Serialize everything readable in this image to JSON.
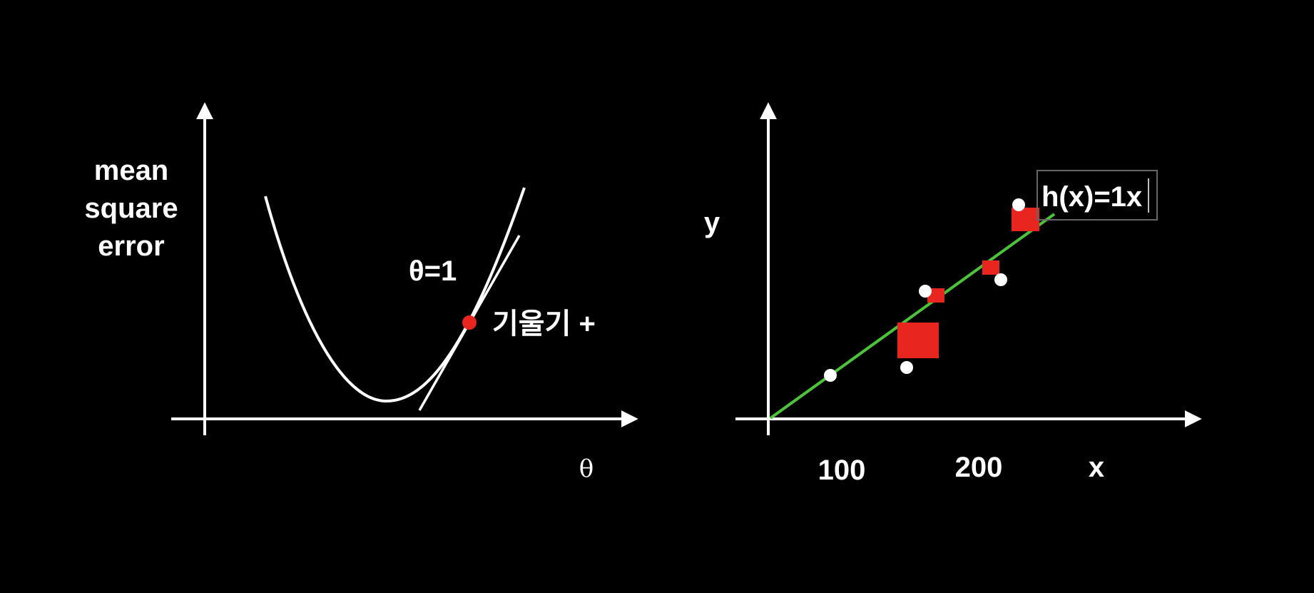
{
  "left_panel": {
    "ylabel_lines": [
      "mean",
      "square",
      "error"
    ],
    "xlabel": "θ",
    "point_label": "θ=1",
    "slope_label": "기울기 +"
  },
  "right_panel": {
    "ylabel": "y",
    "x_ticks": [
      "100",
      "200"
    ],
    "xlabel": "x",
    "hypothesis_label": "h(x)=1x"
  },
  "colors": {
    "background": "#000000",
    "foreground": "#ffffff",
    "point": "#e8251f",
    "fit_line": "#4cc43a",
    "error_square": "#e8251f",
    "label_box_border": "#666666"
  }
}
